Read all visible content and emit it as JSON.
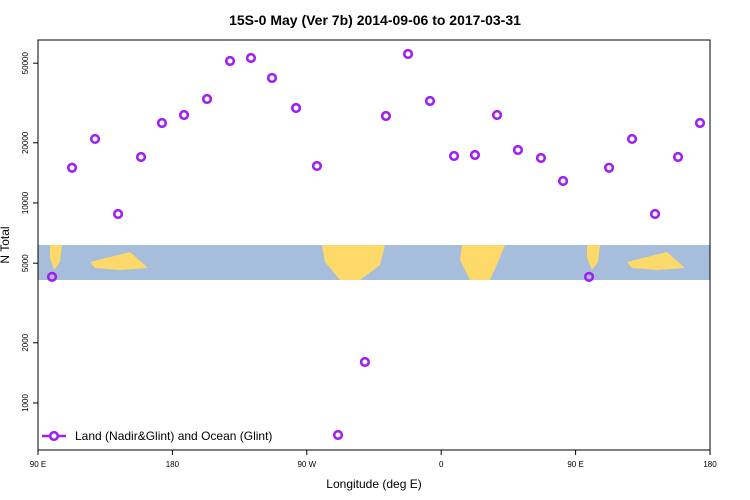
{
  "chart_data": {
    "type": "scatter",
    "title": "15S-0 May (Ver 7b)   2014-09-06 to 2017-03-31",
    "x_label": "Longitude (deg E)",
    "y_label": "N Total",
    "x": [
      99.4,
      112.8,
      128.2,
      143.6,
      159,
      173,
      187.8,
      203.2,
      218.6,
      232.6,
      246.7,
      262.8,
      276.8,
      290.9,
      308.9,
      323,
      337.8,
      352.5,
      368.6,
      382.6,
      397.4,
      411.4,
      426.8,
      441.6,
      459,
      472.4,
      487.8,
      503.2,
      518.6,
      533.3
    ],
    "series": [
      {
        "name": "Land (Nadir&Glint) and Ocean (Glint)",
        "color": "#a020f0",
        "values": [
          4270,
          15000,
          20900,
          8810,
          16980,
          25120,
          27540,
          33110,
          51290,
          53090,
          42170,
          29850,
          15310,
          692,
          1603,
          27230,
          55590,
          32360,
          17180,
          17380,
          27540,
          18410,
          16790,
          12880,
          4270,
          15000,
          20900,
          8810,
          16980,
          25120
        ]
      }
    ],
    "xlim": [
      90,
      540
    ],
    "xticks": [
      {
        "value": 90,
        "label": "90 E"
      },
      {
        "value": 180,
        "label": "180"
      },
      {
        "value": 270,
        "label": "90 W"
      },
      {
        "value": 360,
        "label": "0"
      },
      {
        "value": 450,
        "label": "90 E"
      },
      {
        "value": 540,
        "label": "180"
      }
    ],
    "ylim": [
      582,
      65300
    ],
    "ylog": true,
    "yticks": [
      1000,
      2000,
      5000,
      10000,
      20000,
      50000
    ],
    "legend": "bottom-left"
  }
}
